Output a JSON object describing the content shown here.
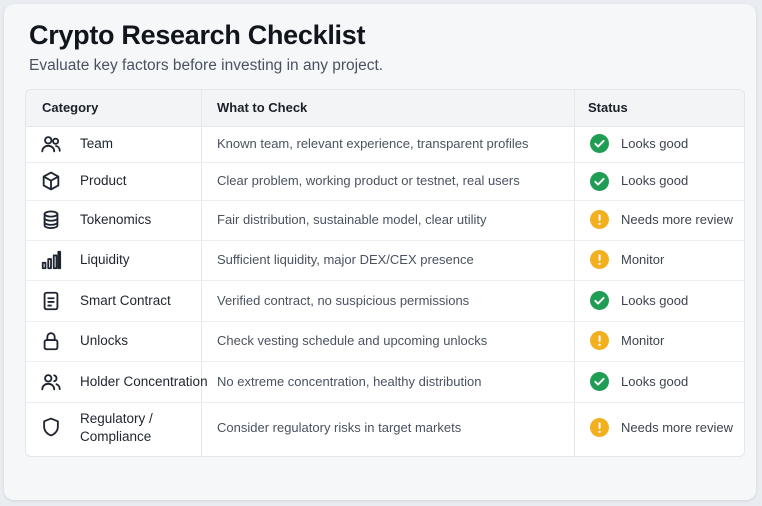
{
  "header": {
    "title": "Crypto Research Checklist",
    "subtitle": "Evaluate key factors before investing in any project."
  },
  "table": {
    "columns": [
      "Category",
      "What to Check",
      "Status"
    ],
    "rows": [
      {
        "icon": "team-icon",
        "category": "Team",
        "what": "Known team, relevant experience, transparent profiles",
        "status": "Looks good",
        "status_type": "good"
      },
      {
        "icon": "cube-icon",
        "category": "Product",
        "what": "Clear problem, working product or testnet, real users",
        "status": "Looks good",
        "status_type": "good"
      },
      {
        "icon": "coin-stack-icon",
        "category": "Tokenomics",
        "what": "Fair distribution, sustainable model, clear utility",
        "status": "Needs more review",
        "status_type": "warn"
      },
      {
        "icon": "bar-chart-icon",
        "category": "Liquidity",
        "what": "Sufficient liquidity, major DEX/CEX presence",
        "status": "Monitor",
        "status_type": "warn"
      },
      {
        "icon": "document-icon",
        "category": "Smart Contract",
        "what": "Verified contract, no suspicious permissions",
        "status": "Looks good",
        "status_type": "good"
      },
      {
        "icon": "lock-icon",
        "category": "Unlocks",
        "what": "Check vesting schedule and upcoming unlocks",
        "status": "Monitor",
        "status_type": "warn"
      },
      {
        "icon": "holders-icon",
        "category": "Holder Concentration",
        "what": "No extreme concentration, healthy distribution",
        "status": "Looks good",
        "status_type": "good"
      },
      {
        "icon": "shield-icon",
        "category_line1": "Regulatory /",
        "category_line2": "Compliance",
        "what": "Consider regulatory risks in target markets",
        "status": "Needs more review",
        "status_type": "warn"
      }
    ]
  },
  "colors": {
    "good": "#1f9d55",
    "warn": "#f2b01e",
    "icon_stroke": "#1f2530"
  }
}
